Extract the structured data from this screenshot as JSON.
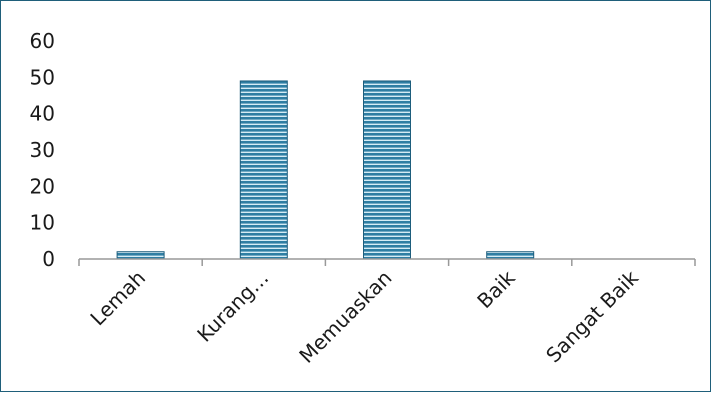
{
  "chart_data": {
    "type": "bar",
    "title": "",
    "xlabel": "",
    "ylabel": "",
    "categories": [
      "Lemah",
      "Kurang…",
      "Memuaskan",
      "Baik",
      "Sangat Baik"
    ],
    "values": [
      2,
      49,
      49,
      2,
      0
    ],
    "ylim": [
      0,
      60
    ],
    "yticks": [
      0,
      10,
      20,
      30,
      40,
      50,
      60
    ],
    "grid": false,
    "legend": "none",
    "colors": {
      "bar_fill": "#2f7ea3",
      "bar_stripe": "#d6ecf5",
      "bar_edge": "#1d5d7c",
      "axis": "#999999",
      "frame": "#1f5f7a"
    }
  }
}
